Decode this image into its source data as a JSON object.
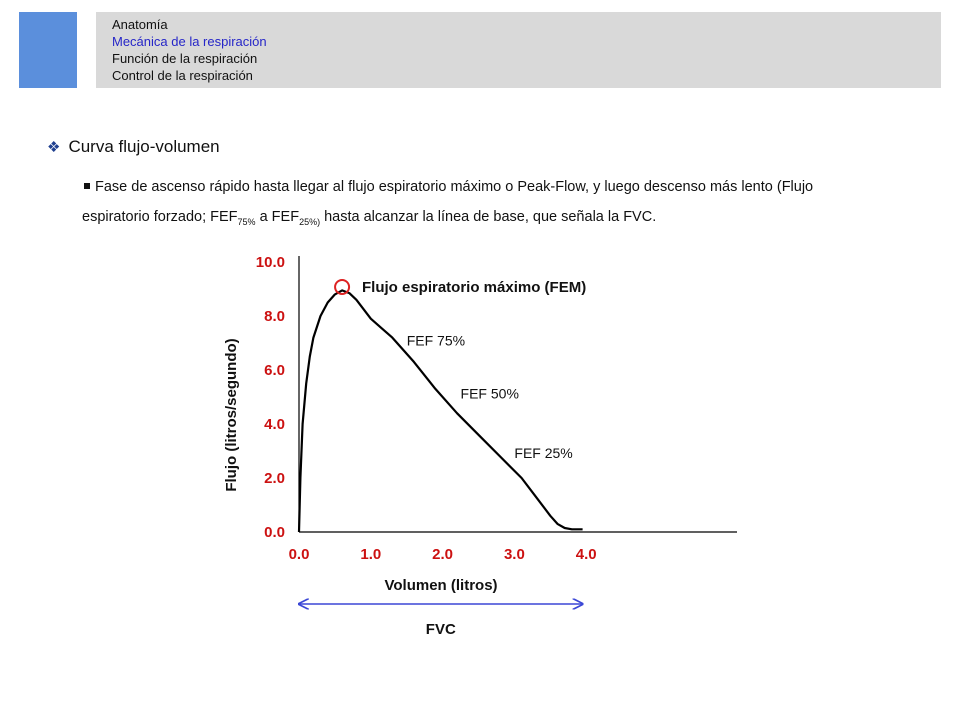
{
  "nav": {
    "items": [
      {
        "label": "Anatomía",
        "active": false
      },
      {
        "label": "Mecánica de la respiración",
        "active": true
      },
      {
        "label": "Función de la respiración",
        "active": false
      },
      {
        "label": "Control de la respiración",
        "active": false
      }
    ],
    "active_color": "#2626c8"
  },
  "section": {
    "title": "Curva flujo-volumen",
    "icon": "diamond-bullet-icon"
  },
  "paragraph": {
    "part1": "Fase de ascenso rápido hasta llegar al flujo espiratorio máximo o Peak-Flow, y luego  descenso  más lento (Flujo espiratorio forzado; FEF",
    "sub1": "75%",
    "part2": " a FEF",
    "sub2": "25%)",
    "part3": " hasta alcanzar la línea de base, que señala la FVC."
  },
  "chart_data": {
    "type": "line",
    "xlabel": "Volumen (litros)",
    "ylabel": "Flujo (litros/segundo)",
    "xlim": [
      0,
      6.1
    ],
    "ylim": [
      0,
      10
    ],
    "x_ticks": [
      "0.0",
      "1.0",
      "2.0",
      "3.0",
      "4.0"
    ],
    "y_ticks": [
      "0.0",
      "2.0",
      "4.0",
      "6.0",
      "8.0",
      "10.0"
    ],
    "tick_color": "#cc1111",
    "series": [
      {
        "x": [
          0.0,
          0.02,
          0.05,
          0.1,
          0.15,
          0.2,
          0.3,
          0.4,
          0.5,
          0.6,
          0.7,
          0.8,
          1.0,
          1.3,
          1.6,
          1.9,
          2.2,
          2.5,
          2.8,
          3.1,
          3.3,
          3.5,
          3.6,
          3.7,
          3.8,
          3.95
        ],
        "y": [
          0.0,
          2.0,
          4.0,
          5.5,
          6.5,
          7.2,
          8.0,
          8.5,
          8.8,
          8.95,
          8.85,
          8.6,
          7.9,
          7.2,
          6.3,
          5.3,
          4.4,
          3.6,
          2.8,
          2.0,
          1.3,
          0.6,
          0.3,
          0.15,
          0.1,
          0.1
        ]
      }
    ],
    "peak": {
      "x": 0.6,
      "y": 9.0,
      "label": "Flujo espiratorio máximo (FEM)",
      "marker_color": "#dd2222"
    },
    "annotations": [
      {
        "label": "FEF 75%",
        "x": 1.5,
        "y": 6.9
      },
      {
        "label": "FEF 50%",
        "x": 2.25,
        "y": 4.95
      },
      {
        "label": "FEF 25%",
        "x": 3.0,
        "y": 2.75
      }
    ],
    "fvc": {
      "label": "FVC",
      "from": 0.0,
      "to": 3.95,
      "color": "#3b47d6"
    }
  }
}
